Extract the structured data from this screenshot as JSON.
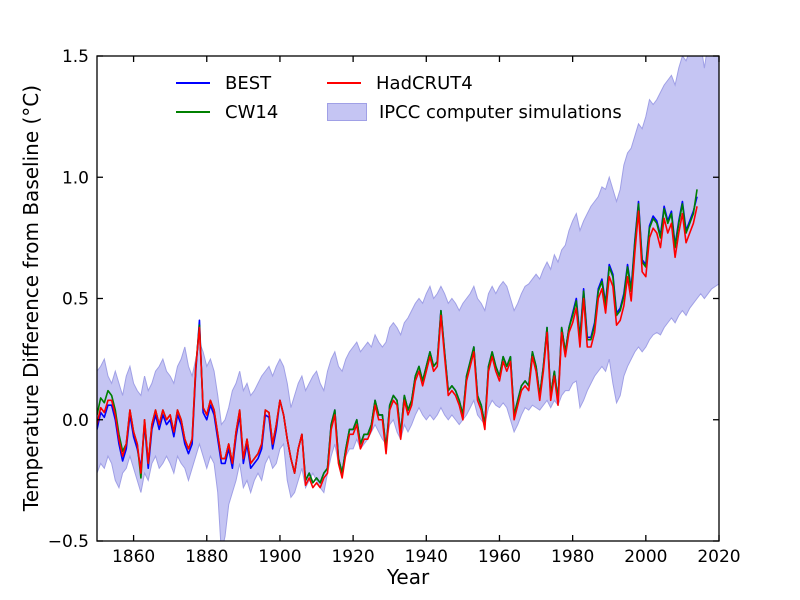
{
  "figure": {
    "background": "#ffffff"
  },
  "chart_data": {
    "type": "line",
    "title": "",
    "xlabel": "Year",
    "ylabel": "Temperature Difference from Baseline (°C)",
    "xlim": [
      1850,
      2020
    ],
    "ylim": [
      -0.5,
      1.5
    ],
    "x_ticks": [
      1860,
      1880,
      1900,
      1920,
      1940,
      1960,
      1980,
      2000,
      2020
    ],
    "x_tick_labels": [
      "1860",
      "1880",
      "1900",
      "1920",
      "1940",
      "1960",
      "1980",
      "2000",
      "2020"
    ],
    "y_ticks": [
      -0.5,
      0.0,
      0.5,
      1.0,
      1.5
    ],
    "y_tick_labels": [
      "−0.5",
      "0.0",
      "0.5",
      "1.0",
      "1.5"
    ],
    "grid": false,
    "legend_position": "upper left",
    "obs_start_year": 1850,
    "obs_end_year": 2014,
    "series": [
      {
        "name": "BEST",
        "color": "#0000ff",
        "values": [
          -0.04,
          0.03,
          0.01,
          0.06,
          0.06,
          0,
          -0.1,
          -0.17,
          -0.12,
          0.02,
          -0.07,
          -0.12,
          -0.2,
          -0.02,
          -0.2,
          -0.04,
          0.02,
          -0.04,
          0.02,
          -0.02,
          0,
          -0.07,
          0.02,
          -0.02,
          -0.1,
          -0.14,
          -0.1,
          0.2,
          0.41,
          0.03,
          0,
          0.06,
          0.02,
          -0.08,
          -0.18,
          -0.18,
          -0.12,
          -0.2,
          -0.07,
          0.02,
          -0.18,
          -0.1,
          -0.2,
          -0.18,
          -0.16,
          -0.12,
          0.02,
          0.01,
          -0.12,
          -0.04,
          0.08,
          0.02,
          -0.08,
          -0.16,
          -0.22,
          -0.12,
          -0.06,
          -0.25,
          -0.22,
          -0.26,
          -0.24,
          -0.26,
          -0.22,
          -0.2,
          -0.02,
          0.04,
          -0.16,
          -0.22,
          -0.12,
          -0.04,
          -0.04,
          0,
          -0.1,
          -0.06,
          -0.06,
          -0.02,
          0.08,
          0.02,
          0.02,
          -0.12,
          0.06,
          0.1,
          0.08,
          -0.06,
          0.1,
          0.04,
          0.08,
          0.18,
          0.22,
          0.16,
          0.22,
          0.28,
          0.22,
          0.24,
          0.45,
          0.28,
          0.12,
          0.14,
          0.12,
          0.08,
          0.02,
          0.18,
          0.24,
          0.3,
          0.1,
          0.06,
          -0.02,
          0.22,
          0.28,
          0.22,
          0.18,
          0.26,
          0.22,
          0.26,
          0.02,
          0.08,
          0.14,
          0.16,
          0.14,
          0.28,
          0.22,
          0.1,
          0.22,
          0.38,
          0.1,
          0.2,
          0.08,
          0.38,
          0.28,
          0.38,
          0.44,
          0.5,
          0.34,
          0.54,
          0.34,
          0.34,
          0.4,
          0.54,
          0.58,
          0.48,
          0.64,
          0.6,
          0.44,
          0.46,
          0.52,
          0.64,
          0.54,
          0.74,
          0.9,
          0.66,
          0.64,
          0.8,
          0.84,
          0.82,
          0.76,
          0.88,
          0.82,
          0.86,
          0.72,
          0.82,
          0.9,
          0.78,
          0.82,
          0.86,
          0.92
        ]
      },
      {
        "name": "CW14",
        "color": "#008000",
        "values": [
          0.02,
          0.09,
          0.07,
          0.12,
          0.1,
          0.04,
          -0.06,
          -0.13,
          -0.1,
          0.04,
          -0.05,
          -0.1,
          -0.24,
          0,
          -0.18,
          -0.02,
          0.04,
          -0.02,
          0.04,
          0,
          0.02,
          -0.05,
          0.04,
          0,
          -0.08,
          -0.12,
          -0.08,
          0.22,
          0.39,
          0.05,
          0.02,
          0.08,
          0.04,
          -0.06,
          -0.16,
          -0.16,
          -0.1,
          -0.18,
          -0.05,
          0.04,
          -0.16,
          -0.08,
          -0.18,
          -0.16,
          -0.14,
          -0.1,
          0.04,
          0.03,
          -0.1,
          -0.02,
          0.08,
          0.02,
          -0.08,
          -0.16,
          -0.22,
          -0.12,
          -0.06,
          -0.25,
          -0.22,
          -0.26,
          -0.24,
          -0.26,
          -0.22,
          -0.2,
          -0.02,
          0.04,
          -0.16,
          -0.22,
          -0.12,
          -0.04,
          -0.04,
          0,
          -0.1,
          -0.06,
          -0.06,
          -0.02,
          0.08,
          0.02,
          0.02,
          -0.12,
          0.06,
          0.1,
          0.08,
          -0.06,
          0.1,
          0.04,
          0.08,
          0.18,
          0.22,
          0.16,
          0.22,
          0.28,
          0.22,
          0.24,
          0.45,
          0.28,
          0.12,
          0.14,
          0.12,
          0.08,
          0.02,
          0.18,
          0.24,
          0.3,
          0.1,
          0.06,
          -0.02,
          0.22,
          0.28,
          0.22,
          0.18,
          0.26,
          0.22,
          0.26,
          0.02,
          0.08,
          0.14,
          0.16,
          0.14,
          0.28,
          0.22,
          0.1,
          0.22,
          0.38,
          0.1,
          0.2,
          0.08,
          0.38,
          0.28,
          0.38,
          0.43,
          0.49,
          0.33,
          0.53,
          0.33,
          0.33,
          0.39,
          0.53,
          0.57,
          0.47,
          0.63,
          0.59,
          0.43,
          0.45,
          0.51,
          0.63,
          0.53,
          0.73,
          0.89,
          0.65,
          0.63,
          0.79,
          0.83,
          0.81,
          0.75,
          0.87,
          0.81,
          0.85,
          0.71,
          0.81,
          0.89,
          0.77,
          0.81,
          0.85,
          0.95
        ]
      },
      {
        "name": "HadCRUT4",
        "color": "#ff0000",
        "values": [
          -0.02,
          0.05,
          0.03,
          0.08,
          0.08,
          0.02,
          -0.08,
          -0.15,
          -0.1,
          0.04,
          -0.05,
          -0.1,
          -0.22,
          0,
          -0.18,
          -0.02,
          0.04,
          -0.02,
          0.04,
          0,
          0.02,
          -0.05,
          0.04,
          0,
          -0.08,
          -0.12,
          -0.08,
          0.22,
          0.38,
          0.05,
          0.02,
          0.08,
          0.04,
          -0.06,
          -0.16,
          -0.16,
          -0.1,
          -0.18,
          -0.05,
          0.04,
          -0.16,
          -0.08,
          -0.18,
          -0.16,
          -0.14,
          -0.1,
          0.04,
          0.03,
          -0.1,
          -0.02,
          0.08,
          0.02,
          -0.08,
          -0.16,
          -0.22,
          -0.12,
          -0.06,
          -0.27,
          -0.24,
          -0.28,
          -0.26,
          -0.28,
          -0.24,
          -0.22,
          -0.04,
          0.02,
          -0.18,
          -0.24,
          -0.14,
          -0.06,
          -0.06,
          -0.02,
          -0.12,
          -0.08,
          -0.08,
          -0.04,
          0.06,
          0,
          0,
          -0.14,
          0.04,
          0.08,
          0.06,
          -0.08,
          0.08,
          0.02,
          0.06,
          0.16,
          0.2,
          0.14,
          0.2,
          0.26,
          0.2,
          0.22,
          0.43,
          0.26,
          0.1,
          0.12,
          0.1,
          0.06,
          0,
          0.16,
          0.22,
          0.28,
          0.08,
          0.04,
          -0.04,
          0.2,
          0.26,
          0.2,
          0.16,
          0.24,
          0.2,
          0.24,
          0,
          0.06,
          0.12,
          0.14,
          0.12,
          0.26,
          0.2,
          0.08,
          0.2,
          0.36,
          0.08,
          0.18,
          0.06,
          0.36,
          0.26,
          0.36,
          0.4,
          0.46,
          0.3,
          0.5,
          0.3,
          0.3,
          0.36,
          0.5,
          0.54,
          0.44,
          0.59,
          0.55,
          0.39,
          0.41,
          0.47,
          0.59,
          0.49,
          0.69,
          0.86,
          0.61,
          0.59,
          0.75,
          0.79,
          0.77,
          0.71,
          0.83,
          0.77,
          0.81,
          0.67,
          0.77,
          0.85,
          0.73,
          0.77,
          0.81,
          0.88
        ]
      }
    ],
    "band": {
      "name": "IPCC computer simulations",
      "fill": "#c5c5f3",
      "edge": "#a0a0e6",
      "start_year": 1850,
      "end_year": 2020,
      "lower": [
        -0.22,
        -0.18,
        -0.2,
        -0.15,
        -0.18,
        -0.25,
        -0.28,
        -0.22,
        -0.2,
        -0.15,
        -0.2,
        -0.25,
        -0.3,
        -0.22,
        -0.25,
        -0.18,
        -0.15,
        -0.2,
        -0.18,
        -0.15,
        -0.18,
        -0.22,
        -0.15,
        -0.18,
        -0.2,
        -0.25,
        -0.2,
        -0.15,
        -0.1,
        -0.15,
        -0.2,
        -0.15,
        -0.18,
        -0.3,
        -0.55,
        -0.48,
        -0.35,
        -0.3,
        -0.25,
        -0.18,
        -0.28,
        -0.25,
        -0.3,
        -0.25,
        -0.22,
        -0.25,
        -0.18,
        -0.15,
        -0.2,
        -0.18,
        -0.12,
        -0.1,
        -0.25,
        -0.32,
        -0.3,
        -0.25,
        -0.2,
        -0.28,
        -0.25,
        -0.22,
        -0.25,
        -0.28,
        -0.3,
        -0.22,
        -0.15,
        -0.1,
        -0.18,
        -0.2,
        -0.15,
        -0.12,
        -0.12,
        -0.08,
        -0.12,
        -0.1,
        -0.08,
        -0.05,
        -0.02,
        -0.05,
        -0.08,
        -0.1,
        -0.02,
        0,
        -0.05,
        -0.08,
        -0.02,
        -0.05,
        -0.02,
        0.02,
        0.05,
        0.02,
        0,
        0.02,
        0,
        0.02,
        0.05,
        0.02,
        0,
        0.02,
        0,
        -0.02,
        0,
        0.02,
        0.05,
        0.08,
        0.02,
        0,
        -0.02,
        0.05,
        0.08,
        0.06,
        0.05,
        0.07,
        0.05,
        0,
        -0.05,
        -0.02,
        0.02,
        0.05,
        0.04,
        0.06,
        0.05,
        0.04,
        0.06,
        0.08,
        0.05,
        0.08,
        0.06,
        0.1,
        0.12,
        0.12,
        0.15,
        0.16,
        0.05,
        0.08,
        0.12,
        0.15,
        0.18,
        0.2,
        0.22,
        0.2,
        0.25,
        0.15,
        0.07,
        0.1,
        0.18,
        0.22,
        0.25,
        0.28,
        0.3,
        0.28,
        0.3,
        0.33,
        0.35,
        0.36,
        0.35,
        0.38,
        0.4,
        0.42,
        0.4,
        0.43,
        0.45,
        0.43,
        0.46,
        0.48,
        0.5,
        0.52,
        0.5,
        0.52,
        0.54,
        0.55,
        0.56
      ],
      "upper": [
        0.2,
        0.22,
        0.25,
        0.18,
        0.15,
        0.2,
        0.15,
        0.1,
        0.18,
        0.22,
        0.15,
        0.12,
        0.1,
        0.18,
        0.12,
        0.15,
        0.2,
        0.22,
        0.25,
        0.2,
        0.18,
        0.15,
        0.22,
        0.25,
        0.3,
        0.22,
        0.18,
        0.25,
        0.32,
        0.28,
        0.22,
        0.25,
        0.2,
        0.1,
        -0.02,
        0,
        0.05,
        0.12,
        0.15,
        0.2,
        0.12,
        0.15,
        0.1,
        0.12,
        0.15,
        0.18,
        0.2,
        0.22,
        0.18,
        0.22,
        0.25,
        0.22,
        0.15,
        0.05,
        0.1,
        0.15,
        0.18,
        0.12,
        0.15,
        0.18,
        0.2,
        0.15,
        0.12,
        0.2,
        0.25,
        0.28,
        0.22,
        0.2,
        0.25,
        0.28,
        0.3,
        0.32,
        0.28,
        0.3,
        0.32,
        0.3,
        0.35,
        0.32,
        0.3,
        0.32,
        0.38,
        0.4,
        0.38,
        0.35,
        0.4,
        0.42,
        0.45,
        0.48,
        0.5,
        0.48,
        0.52,
        0.55,
        0.5,
        0.52,
        0.55,
        0.52,
        0.48,
        0.5,
        0.48,
        0.45,
        0.48,
        0.5,
        0.52,
        0.55,
        0.5,
        0.48,
        0.45,
        0.52,
        0.55,
        0.52,
        0.55,
        0.57,
        0.55,
        0.5,
        0.45,
        0.48,
        0.52,
        0.55,
        0.56,
        0.58,
        0.6,
        0.58,
        0.62,
        0.65,
        0.62,
        0.68,
        0.65,
        0.7,
        0.72,
        0.78,
        0.82,
        0.85,
        0.78,
        0.82,
        0.85,
        0.88,
        0.9,
        0.92,
        0.96,
        0.95,
        1,
        0.95,
        0.9,
        0.95,
        1.05,
        1.1,
        1.12,
        1.17,
        1.22,
        1.2,
        1.25,
        1.32,
        1.3,
        1.32,
        1.35,
        1.38,
        1.4,
        1.42,
        1.38,
        1.45,
        1.5,
        1.48,
        1.52,
        1.55,
        1.55,
        1.55,
        1.45,
        1.55,
        1.55,
        1.52,
        1.55
      ]
    }
  }
}
